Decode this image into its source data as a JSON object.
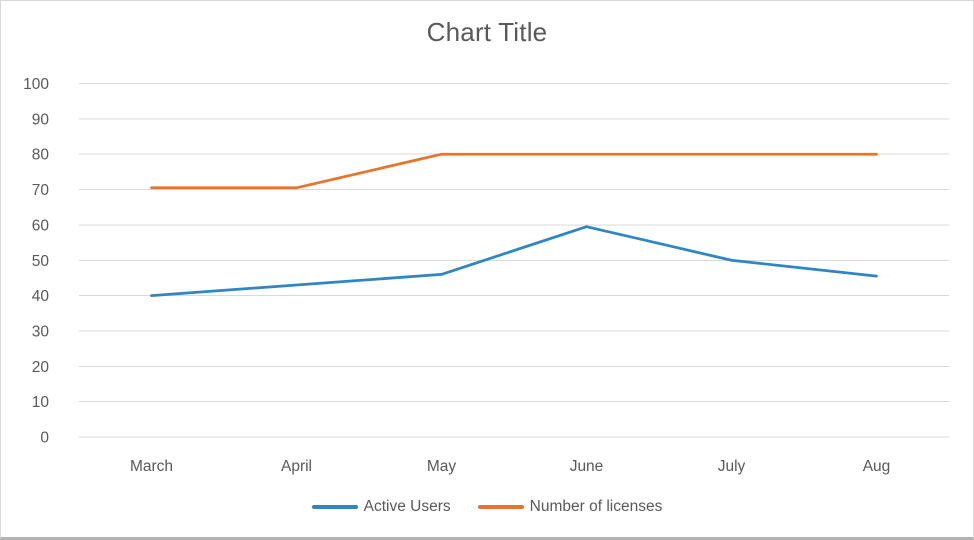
{
  "chart_data": {
    "type": "line",
    "title": "Chart Title",
    "categories": [
      "March",
      "April",
      "May",
      "June",
      "July",
      "Aug"
    ],
    "series": [
      {
        "name": "Active Users",
        "color": "#2E86C4",
        "values": [
          40,
          43,
          46,
          59.5,
          50,
          45.5
        ]
      },
      {
        "name": "Number of licenses",
        "color": "#E8732A",
        "values": [
          70.5,
          70.5,
          80,
          80,
          80,
          80
        ]
      }
    ],
    "xlabel": "",
    "ylabel": "",
    "ylim": [
      0,
      100
    ],
    "ytick_step": 10,
    "ytick_labels": [
      "0",
      "10",
      "20",
      "30",
      "40",
      "50",
      "60",
      "70",
      "80",
      "90",
      "100"
    ],
    "grid": "horizontal",
    "legend_position": "bottom"
  },
  "styles": {
    "background": "#FFFFFF",
    "title_color": "#595959",
    "tick_label_color": "#595959",
    "legend_text_color": "#595959",
    "gridline_color": "#D9D9D9",
    "canvas_border_color": "#D9D9D9",
    "canvas_bottom_edge_color": "#B3B3B3",
    "line_width": 2.75
  }
}
